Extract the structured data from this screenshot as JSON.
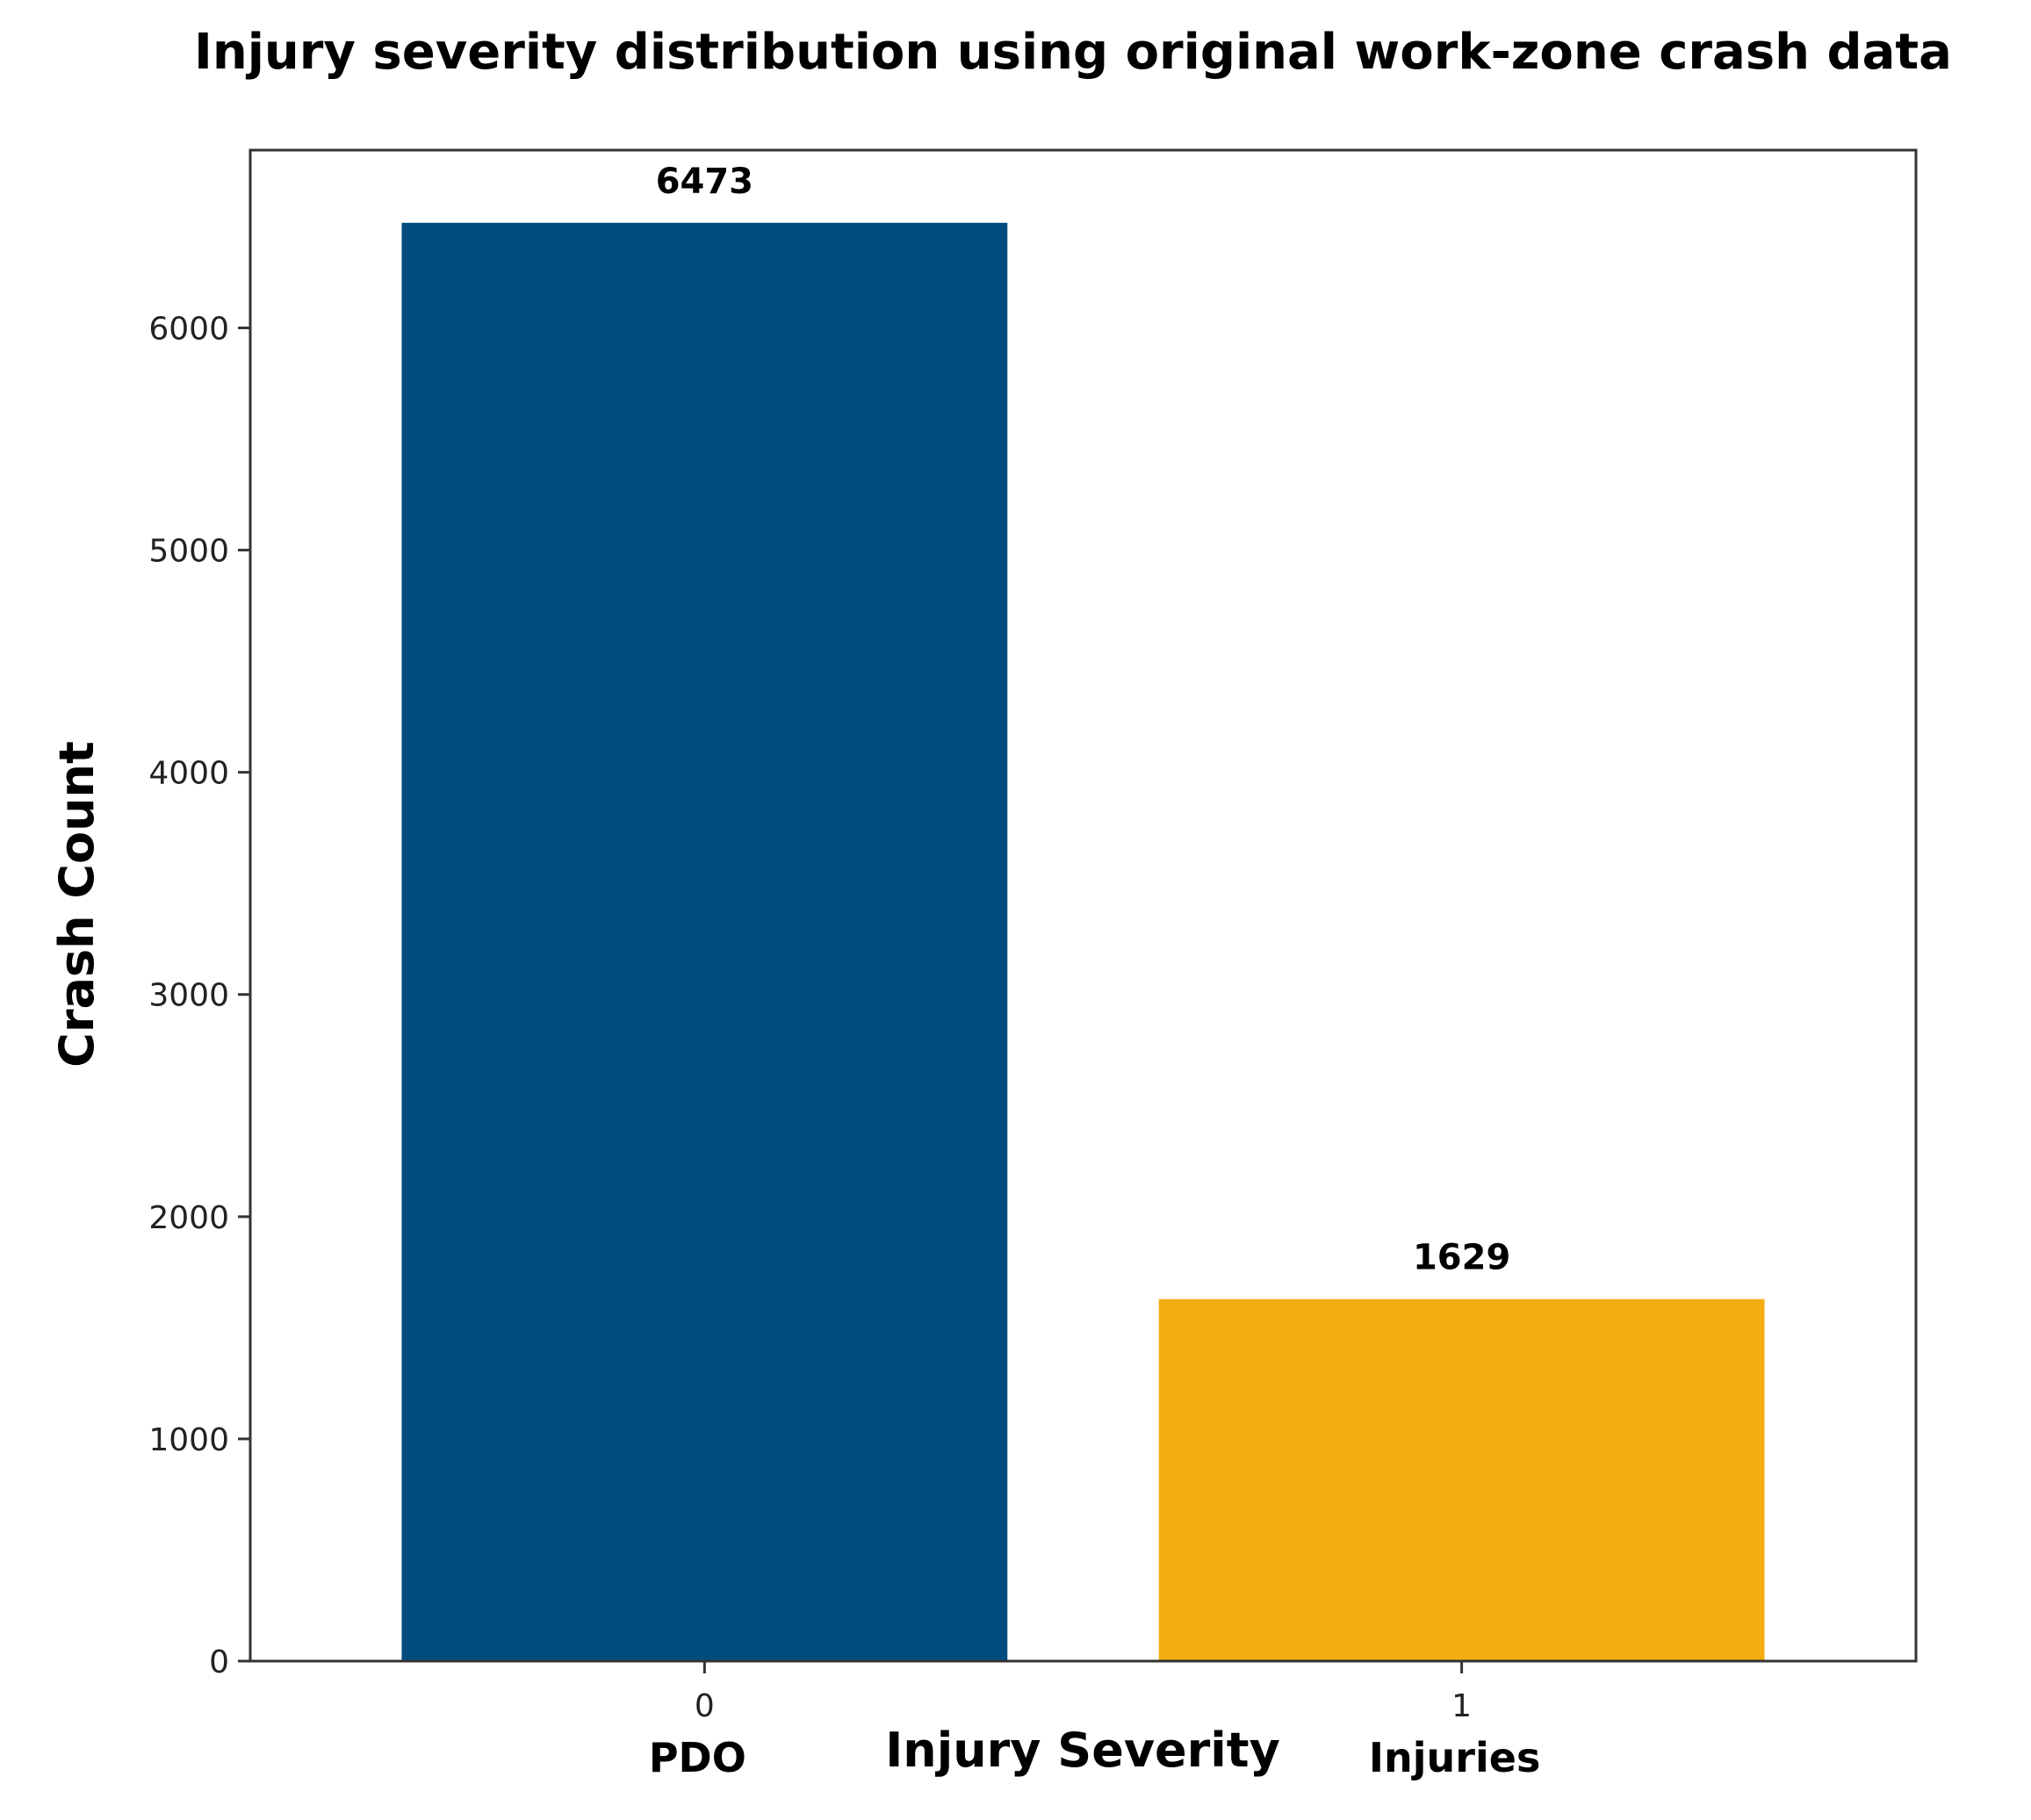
{
  "chart_data": {
    "type": "bar",
    "title": "Injury severity distribution using original work-zone crash data",
    "xlabel": "Injury Severity",
    "ylabel": "Crash Count",
    "categories": [
      "0",
      "1"
    ],
    "category_labels": [
      "PDO",
      "Injuries"
    ],
    "values": [
      6473,
      1629
    ],
    "value_labels": [
      "6473",
      "1629"
    ],
    "colors": [
      "#004c7e",
      "#f2ae11"
    ],
    "ylim": [
      0,
      6800
    ],
    "yticks": [
      0,
      1000,
      2000,
      3000,
      4000,
      5000,
      6000
    ],
    "grid": false,
    "legend": "none"
  }
}
